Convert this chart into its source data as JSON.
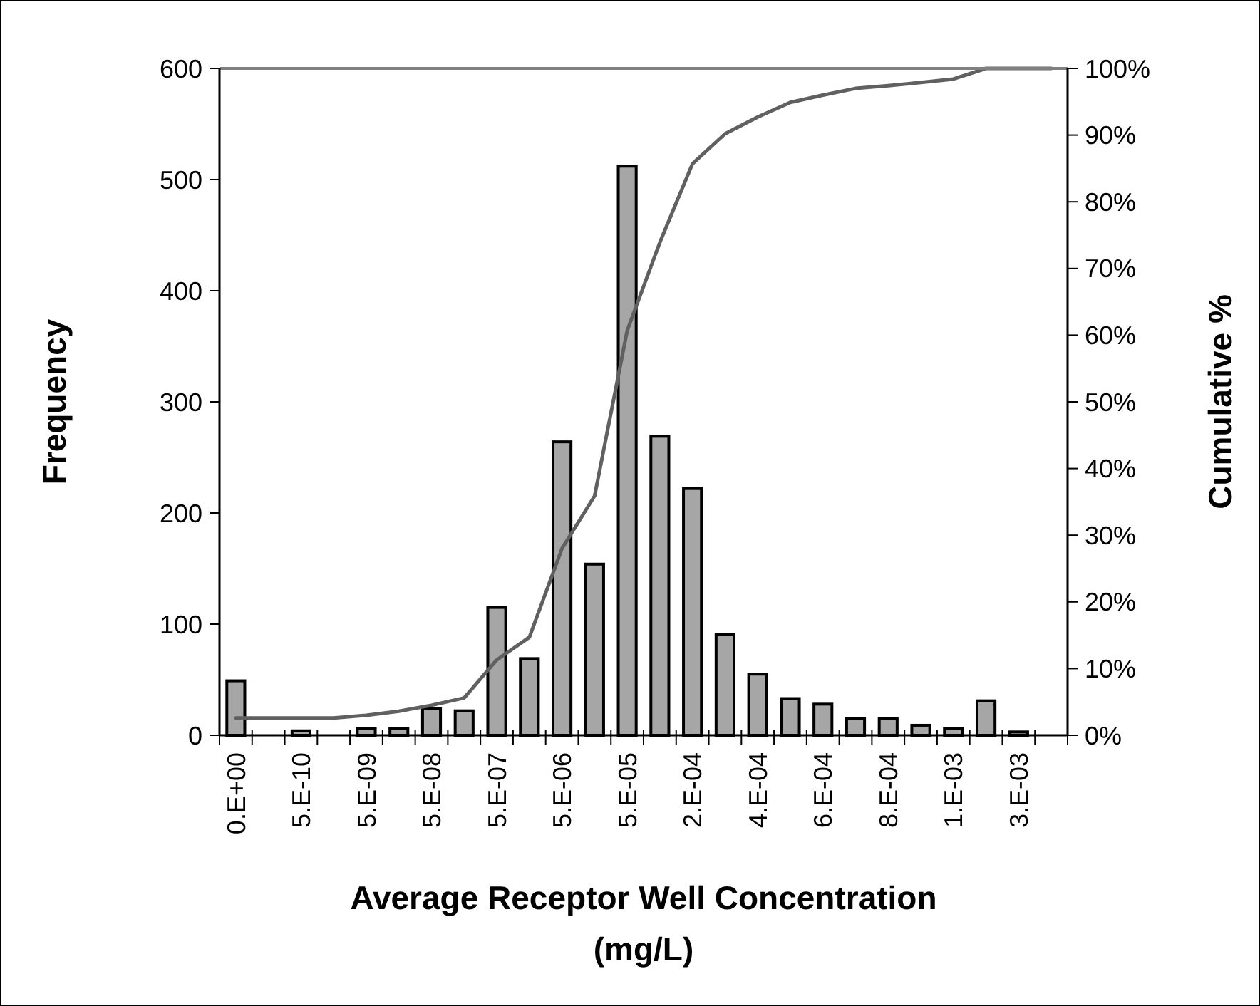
{
  "chart_data": {
    "type": "bar",
    "xlabel": "Average Receptor Well Concentration (mg/L)",
    "ylabel": "Frequency",
    "y2label": "Cumulative %",
    "categories": [
      "0.E+00",
      null,
      "5.E-10",
      null,
      "5.E-09",
      null,
      "5.E-08",
      null,
      "5.E-07",
      null,
      "5.E-06",
      null,
      "5.E-05",
      null,
      "2.E-04",
      null,
      "4.E-04",
      null,
      "6.E-04",
      null,
      "8.E-04",
      null,
      "1.E-03",
      null,
      "3.E-03",
      null
    ],
    "series": [
      {
        "color": "#a6a6a6",
        "values": [
          49,
          0,
          4,
          0,
          6,
          6,
          24,
          22,
          115,
          69,
          264,
          154,
          512,
          269,
          222,
          91,
          55,
          33,
          28,
          15,
          15,
          9,
          6,
          31,
          3,
          0
        ]
      },
      {
        "type": "line",
        "axis": "y2",
        "color": "#606060",
        "values": [
          2.6,
          2.6,
          2.6,
          2.6,
          3,
          3.6,
          4.5,
          5.6,
          11.3,
          14.7,
          28,
          35.9,
          60.7,
          73.9,
          85.7,
          90.2,
          92.7,
          94.9,
          96,
          97,
          97.4,
          97.9,
          98.4,
          100,
          100,
          100
        ]
      }
    ],
    "ylim": [
      0,
      600
    ],
    "yticks": [
      0,
      100,
      200,
      300,
      400,
      500,
      600
    ],
    "y2lim": [
      0,
      100
    ],
    "y2ticks": [
      {
        "value": 0,
        "label": "0%"
      },
      {
        "value": 10,
        "label": "10%"
      },
      {
        "value": 20,
        "label": "20%"
      },
      {
        "value": 30,
        "label": "30%"
      },
      {
        "value": 40,
        "label": "40%"
      },
      {
        "value": 50,
        "label": "50%"
      },
      {
        "value": 60,
        "label": "60%"
      },
      {
        "value": 70,
        "label": "70%"
      },
      {
        "value": 80,
        "label": "80%"
      },
      {
        "value": 90,
        "label": "90%"
      },
      {
        "value": 100,
        "label": "100%"
      }
    ],
    "grid": false
  }
}
